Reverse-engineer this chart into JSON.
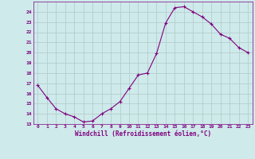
{
  "x": [
    0,
    1,
    2,
    3,
    4,
    5,
    6,
    7,
    8,
    9,
    10,
    11,
    12,
    13,
    14,
    15,
    16,
    17,
    18,
    19,
    20,
    21,
    22,
    23
  ],
  "y": [
    16.8,
    15.6,
    14.5,
    14.0,
    13.7,
    13.2,
    13.3,
    14.0,
    14.5,
    15.2,
    16.5,
    17.8,
    18.0,
    19.9,
    22.9,
    24.4,
    24.5,
    24.0,
    23.5,
    22.8,
    21.8,
    21.4,
    20.5,
    20.0
  ],
  "line_color": "#800080",
  "marker": "+",
  "marker_size": 3,
  "bg_color": "#ceeaea",
  "grid_color": "#b0c8c8",
  "xlabel": "Windchill (Refroidissement éolien,°C)",
  "ylabel": "",
  "xlim": [
    -0.5,
    23.5
  ],
  "ylim": [
    13,
    25
  ],
  "yticks": [
    13,
    14,
    15,
    16,
    17,
    18,
    19,
    20,
    21,
    22,
    23,
    24
  ],
  "xticks": [
    0,
    1,
    2,
    3,
    4,
    5,
    6,
    7,
    8,
    9,
    10,
    11,
    12,
    13,
    14,
    15,
    16,
    17,
    18,
    19,
    20,
    21,
    22,
    23
  ],
  "xtick_labels": [
    "0",
    "1",
    "2",
    "3",
    "4",
    "5",
    "6",
    "7",
    "8",
    "9",
    "10",
    "11",
    "12",
    "13",
    "14",
    "15",
    "16",
    "17",
    "18",
    "19",
    "20",
    "21",
    "22",
    "23"
  ]
}
